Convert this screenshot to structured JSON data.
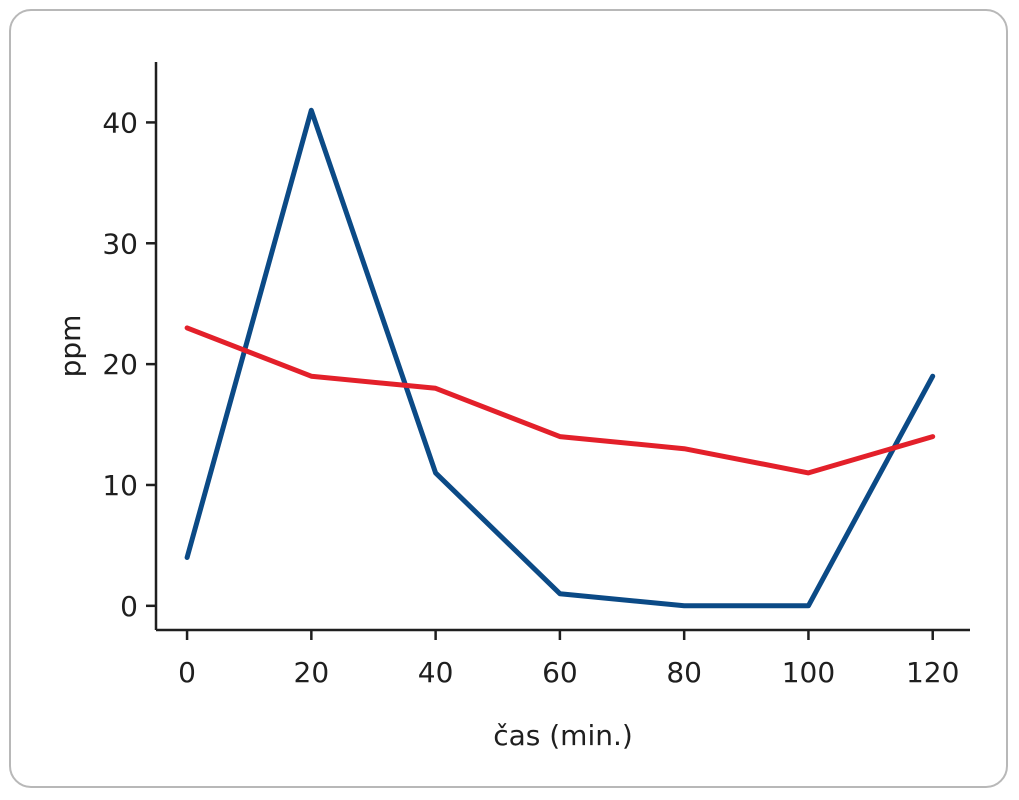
{
  "chart_data": {
    "type": "line",
    "title": "",
    "xlabel": "čas (min.)",
    "ylabel": "ppm",
    "x": [
      0,
      20,
      40,
      60,
      80,
      100,
      120
    ],
    "x_ticks": [
      "0",
      "20",
      "40",
      "60",
      "80",
      "100",
      "120"
    ],
    "y_ticks": [
      "0",
      "10",
      "20",
      "30",
      "40"
    ],
    "xlim": [
      -5,
      126
    ],
    "ylim": [
      -2,
      45
    ],
    "grid": false,
    "legend": "none",
    "series": [
      {
        "color": "#0b4a86",
        "values": [
          4,
          41,
          11,
          1,
          0,
          0,
          19
        ]
      },
      {
        "color": "#e3202a",
        "values": [
          23,
          19,
          18,
          14,
          13,
          11,
          14
        ]
      }
    ]
  }
}
